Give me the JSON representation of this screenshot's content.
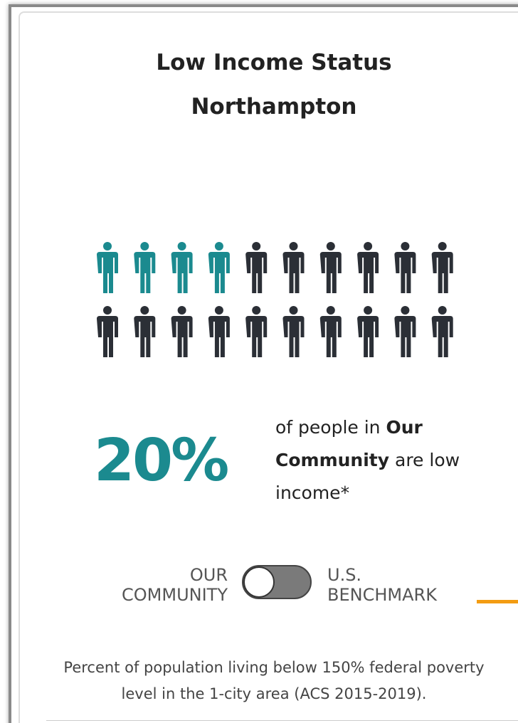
{
  "card": {
    "title": "Low Income Status",
    "subtitle": "Northampton",
    "stat": "20%",
    "description": {
      "before": "of people in ",
      "bold": "Our Community",
      "after": " are low income*"
    },
    "toggle": {
      "left_line1": "OUR",
      "left_line2": "COMMUNITY",
      "right_line1": "U.S.",
      "right_line2": "BENCHMARK"
    },
    "footnote": "Percent of population living below 150% federal poverty level in the 1-city area (ACS 2015-2019)."
  }
}
